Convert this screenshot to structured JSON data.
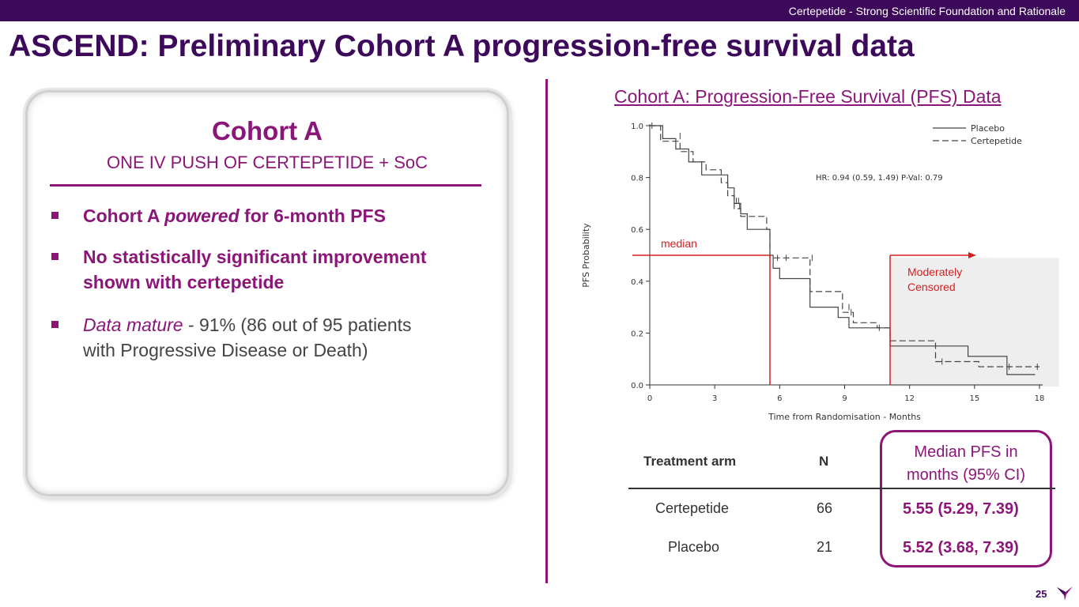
{
  "header": {
    "section_label": "Certepetide - Strong Scientific Foundation and Rationale"
  },
  "title": "ASCEND: Preliminary Cohort A progression-free survival data",
  "card": {
    "title": "Cohort A",
    "subtitle": "ONE IV PUSH OF CERTEPETIDE + SoC",
    "bullets": [
      {
        "pre": "Cohort A ",
        "emph": "powered",
        "post": " for 6-month PFS"
      },
      {
        "line1": "No statistically significant improvement",
        "line2": "shown with certepetide"
      },
      {
        "emph": "Data mature",
        "line1_rest": " - 91% (86 out of 95 patients",
        "line2": "with Progressive Disease or Death)"
      }
    ]
  },
  "chart_heading": "Cohort A: Progression-Free Survival (PFS) Data",
  "chart_data": {
    "type": "line",
    "title": "Cohort A: Progression-Free Survival (PFS) Data",
    "xlabel": "Time from Randomisation - Months",
    "ylabel": "PFS Probability",
    "xlim": [
      0,
      18
    ],
    "ylim": [
      0,
      1.0
    ],
    "xticks": [
      0,
      3,
      6,
      9,
      12,
      15,
      18
    ],
    "yticks": [
      "0.0",
      "0.2",
      "0.4",
      "0.6",
      "0.8",
      "1.0"
    ],
    "legend": [
      "Placebo",
      "Certepetide"
    ],
    "legend_position": "top-right",
    "annotation": "HR: 0.94 (0.59, 1.49)    P-Val:  0.79",
    "median_label": "median",
    "censored_label_1": "Moderately",
    "censored_label_2": "Censored",
    "censored_region": [
      11.1,
      18.9
    ],
    "median_value": 0.5,
    "median_times": [
      5.55,
      11.1
    ],
    "series": [
      {
        "name": "Placebo",
        "style": "solid",
        "x": [
          0,
          0.6,
          0.6,
          1.2,
          1.2,
          1.8,
          1.8,
          2.4,
          2.4,
          3.6,
          3.6,
          3.9,
          3.9,
          4.2,
          4.2,
          4.5,
          4.5,
          4.8,
          4.8,
          5.55,
          5.55,
          5.7,
          5.7,
          6.0,
          6.0,
          7.4,
          7.4,
          8.7,
          8.7,
          9.2,
          9.2,
          10.1,
          10.1,
          11.1,
          11.1,
          14.7,
          14.7,
          16.5,
          16.5,
          17.8
        ],
        "y": [
          1.0,
          1.0,
          0.95,
          0.95,
          0.91,
          0.91,
          0.86,
          0.86,
          0.81,
          0.81,
          0.76,
          0.76,
          0.7,
          0.7,
          0.66,
          0.66,
          0.6,
          0.6,
          0.6,
          0.6,
          0.5,
          0.5,
          0.45,
          0.45,
          0.41,
          0.41,
          0.3,
          0.3,
          0.26,
          0.26,
          0.22,
          0.22,
          0.22,
          0.22,
          0.15,
          0.15,
          0.11,
          0.11,
          0.04,
          0.04
        ]
      },
      {
        "name": "Certepetide",
        "style": "dashed",
        "x": [
          0,
          0.5,
          0.5,
          1.4,
          1.4,
          2.0,
          2.0,
          2.6,
          2.6,
          3.3,
          3.3,
          3.6,
          3.6,
          3.9,
          3.9,
          4.2,
          4.2,
          4.5,
          4.5,
          5.4,
          5.4,
          5.55,
          5.55,
          7.4,
          7.4,
          8.9,
          8.9,
          9.4,
          9.4,
          10.5,
          10.5,
          11.1,
          11.1,
          12.8,
          12.8,
          13.2,
          13.2,
          15.2,
          15.2,
          16.7,
          16.7,
          18.0
        ],
        "y": [
          1.0,
          1.0,
          0.94,
          0.94,
          0.9,
          0.9,
          0.86,
          0.86,
          0.83,
          0.83,
          0.78,
          0.78,
          0.73,
          0.73,
          0.68,
          0.68,
          0.65,
          0.65,
          0.65,
          0.65,
          0.6,
          0.6,
          0.49,
          0.49,
          0.36,
          0.36,
          0.28,
          0.28,
          0.24,
          0.24,
          0.22,
          0.22,
          0.17,
          0.17,
          0.17,
          0.17,
          0.09,
          0.09,
          0.07,
          0.07,
          0.07,
          0.07
        ]
      }
    ],
    "censor_marks": [
      {
        "x": 0.1,
        "y": 1.0
      },
      {
        "x": 1.4,
        "y": 0.96
      },
      {
        "x": 4.0,
        "y": 0.71
      },
      {
        "x": 4.1,
        "y": 0.71
      },
      {
        "x": 5.9,
        "y": 0.49
      },
      {
        "x": 6.3,
        "y": 0.49
      },
      {
        "x": 9.2,
        "y": 0.3
      },
      {
        "x": 9.3,
        "y": 0.28
      },
      {
        "x": 10.6,
        "y": 0.22
      },
      {
        "x": 13.5,
        "y": 0.09
      },
      {
        "x": 16.6,
        "y": 0.07
      },
      {
        "x": 17.9,
        "y": 0.07
      },
      {
        "x": 4.15,
        "y": 0.69
      },
      {
        "x": 7.5,
        "y": 0.49
      }
    ]
  },
  "table": {
    "headers": {
      "arm": "Treatment arm",
      "n": "N",
      "median_1": "Median PFS in",
      "median_2": "months (95% CI)"
    },
    "rows": [
      {
        "arm": "Certepetide",
        "n": "66",
        "median": "5.55 (5.29, 7.39)"
      },
      {
        "arm": "Placebo",
        "n": "21",
        "median": "5.52 (3.68, 7.39)"
      }
    ]
  },
  "footer": {
    "page_number": "25"
  },
  "colors": {
    "purple_dark": "#3d0a5b",
    "magenta": "#8b1678",
    "red": "#d42020"
  }
}
